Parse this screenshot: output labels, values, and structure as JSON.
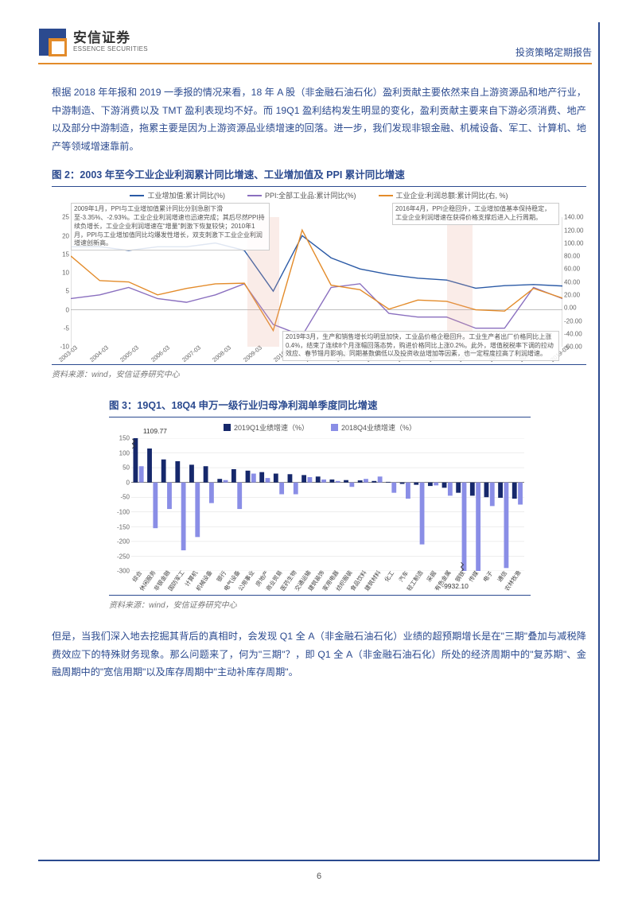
{
  "header": {
    "brand_cn": "安信证券",
    "brand_en": "ESSENCE SECURITIES",
    "doc_type": "投资策略定期报告",
    "logo_colors": {
      "top": "#2b4a8f",
      "bottom": "#e38b2a"
    }
  },
  "para1": "根据 2018 年年报和 2019 一季报的情况来看，18 年 A 股（非金融石油石化）盈利贡献主要依然来自上游资源品和地产行业，中游制造、下游消费以及 TMT 盈利表现均不好。而 19Q1 盈利结构发生明显的变化，盈利贡献主要来自下游必须消费、地产以及部分中游制造，拖累主要是因为上游资源品业绩增速的回落。进一步，我们发现非银金融、机械设备、军工、计算机、地产等领域增速靠前。",
  "fig2": {
    "title": "图 2：2003 年至今工业企业利润累计同比增速、工业增加值及 PPI 累计同比增速",
    "legend": [
      {
        "label": "工业增加值:累计同比(%)",
        "color": "#2b5aa6"
      },
      {
        "label": "PPI:全部工业品:累计同比(%)",
        "color": "#8a6fbf"
      },
      {
        "label": "工业企业:利润总额:累计同比(右, %)",
        "color": "#e38b2a"
      }
    ],
    "y_left": {
      "min": -10,
      "max": 25,
      "step": 5
    },
    "y_right": {
      "min": -60,
      "max": 140,
      "step": 20
    },
    "x_labels": [
      "2003-03",
      "2004-03",
      "2005-03",
      "2006-03",
      "2007-03",
      "2008-03",
      "2009-03",
      "2010-03",
      "2011-03",
      "2012-03",
      "2013-03",
      "2014-03",
      "2015-03",
      "2016-03",
      "2017-03",
      "2018-03",
      "2019-03"
    ],
    "series_iva": [
      17,
      17,
      16,
      17,
      17,
      18,
      16,
      5,
      20,
      14,
      11,
      9.5,
      8.5,
      8,
      5.8,
      6.5,
      6.8,
      6.4
    ],
    "series_ppi": [
      3,
      4,
      6,
      3,
      2,
      4,
      7,
      -4,
      -7,
      6,
      7,
      -1,
      -2,
      -2,
      -5,
      -5,
      6,
      3,
      0.2
    ],
    "series_profit": [
      80,
      42,
      40,
      20,
      30,
      37,
      38,
      -35,
      120,
      35,
      28,
      -2,
      12,
      10,
      -3,
      -5,
      30,
      15,
      -3
    ],
    "shaded_x": [
      {
        "from": 6.1,
        "to": 7.2
      },
      {
        "from": 13.0,
        "to": 13.9
      }
    ],
    "annot_a": "2009年1月，PPI与工业增加值累计同比分别急剧下滑至-3.35%、-2.93%。工业企业利润增速也迅速完成；其后尽然PPI持续负增长，工业企业利润增速在“增量”刺激下恢复较快；2010年1月，PPI与工业增加值同比均爆发性增长，双支刺激下工业企业利润增速创新高。",
    "annot_b": "2016年4月，PPI企稳回升，工业增加值基本保持稳定，工业企业利润增速在获得价格支撑后进入上行周期。",
    "annot_c": "2019年3月，生产和销售增长均明显加快，工业品价格企稳回升。工业生产者出厂价格同比上涨0.4%，结束了连续8个月涨幅回落态势，购进价格同比上涨0.2%。此外，增值税税率下调的拉动效应、春节错月影响、同期基数偏低以及投资收益增加等因素，也一定程度拉高了利润增速。",
    "source": "资料来源：wind，安信证券研究中心"
  },
  "fig3": {
    "title": "图 3：19Q1、18Q4 申万一级行业归母净利润单季度同比增速",
    "legend": [
      {
        "label": "2019Q1业绩增速（%）",
        "color": "#16286b"
      },
      {
        "label": "2018Q4业绩增速（%）",
        "color": "#8a8ee6"
      }
    ],
    "y": {
      "min": -300,
      "max": 150,
      "step": 50
    },
    "categories": [
      "综合",
      "休闲服务",
      "非银金融",
      "国防军工",
      "计算机",
      "机械设备",
      "银行",
      "电气设备",
      "公用事业",
      "房地产",
      "商业贸易",
      "医药生物",
      "交通运输",
      "建筑装饰",
      "家用电器",
      "纺织服装",
      "食品饮料",
      "建筑材料",
      "化工",
      "汽车",
      "轻工制造",
      "采掘",
      "有色金属",
      "钢铁",
      "传媒",
      "电子",
      "通信",
      "农林牧渔"
    ],
    "values_q1": [
      1109.77,
      115,
      78,
      72,
      60,
      55,
      12,
      45,
      40,
      35,
      30,
      28,
      25,
      20,
      10,
      8,
      7,
      5,
      2,
      -5,
      -8,
      -12,
      -18,
      -35,
      -45,
      -50,
      -52,
      -55
    ],
    "values_q4": [
      55,
      -155,
      -90,
      -230,
      -185,
      -70,
      8,
      -90,
      30,
      15,
      -40,
      -40,
      18,
      10,
      5,
      -15,
      12,
      20,
      -35,
      -55,
      -210,
      -10,
      -45,
      -9932.1,
      -300,
      -80,
      -290,
      -75
    ],
    "top_label": "1109.77",
    "bottom_label": "-9932.10",
    "source": "资料来源：wind，安信证券研究中心"
  },
  "para2": "但是，当我们深入地去挖掘其背后的真相时，会发现 Q1 全 A（非金融石油石化）业绩的超预期增长是在\"三期\"叠加与减税降费效应下的特殊财务现象。那么问题来了，何为\"三期\"？，即 Q1 全 A（非金融石油石化）所处的经济周期中的\"复苏期\"、金融周期中的\"宽信用期\"以及库存周期中\"主动补库存周期\"。",
  "page_no": "6"
}
